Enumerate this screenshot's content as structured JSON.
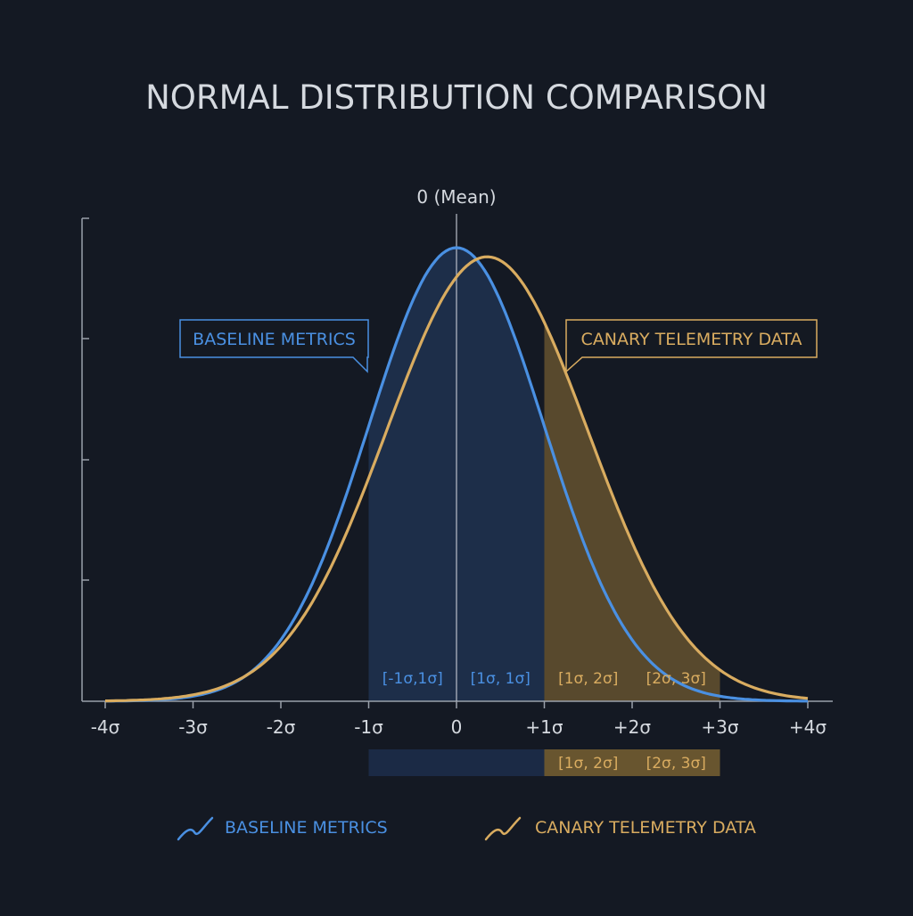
{
  "colors": {
    "background": "#141923",
    "axis": "#9aa1ab",
    "text": "#d5d9df",
    "baseline": "#4a90e2",
    "canary": "#d9ac60",
    "baseline_fill": "#1e3350",
    "canary_fill": "#7d6432",
    "baseline_fill_dark": "#1b2a45"
  },
  "title": "NORMAL DISTRIBUTION COMPARISON",
  "chart_data": {
    "type": "line",
    "title": "NORMAL DISTRIBUTION COMPARISON",
    "xlabel": "",
    "ylabel": "",
    "xlim": [
      -4,
      4
    ],
    "x_ticks": [
      -4,
      -3,
      -2,
      -1,
      0,
      1,
      2,
      3,
      4
    ],
    "x_tick_labels": [
      "-4σ",
      "-3σ",
      "-2σ",
      "-1σ",
      "0",
      "+1σ",
      "+2σ",
      "+3σ",
      "+4σ"
    ],
    "mean_label": "0 (Mean)",
    "grid": false,
    "series": [
      {
        "name": "BASELINE METRICS",
        "mean": 0,
        "sd": 1,
        "peak": 1.0,
        "color": "#4a90e2"
      },
      {
        "name": "CANARY TELEMETRY DATA",
        "mean": 0.35,
        "sd": 1.15,
        "peak": 0.98,
        "color": "#d9ac60"
      }
    ],
    "callouts": [
      {
        "text": "BASELINE METRICS",
        "series": "BASELINE METRICS"
      },
      {
        "text": "CANARY TELEMETRY DATA",
        "series": "CANARY TELEMETRY DATA"
      }
    ],
    "regions": [
      {
        "from": -1,
        "to": 0,
        "label": "[-1σ,1σ]",
        "color": "#4a90e2",
        "kind": "baseline"
      },
      {
        "from": 0,
        "to": 1,
        "label": "[1σ, 1σ]",
        "color": "#4a90e2",
        "kind": "baseline"
      },
      {
        "from": 1,
        "to": 2,
        "label": "[1σ, 2σ]",
        "color": "#d9ac60",
        "kind": "canary"
      },
      {
        "from": 2,
        "to": 3,
        "label": "[2σ, 3σ]",
        "color": "#d9ac60",
        "kind": "canary"
      }
    ],
    "range_bar": [
      {
        "from": -1,
        "to": 1,
        "label": "",
        "kind": "baseline"
      },
      {
        "from": 1,
        "to": 2,
        "label": "[1σ, 2σ]",
        "kind": "canary"
      },
      {
        "from": 2,
        "to": 3,
        "label": "[2σ, 3σ]",
        "kind": "canary"
      }
    ],
    "legend": {
      "placement": "bottom",
      "items": [
        {
          "label": "BASELINE METRICS",
          "color": "#4a90e2",
          "icon": "trend-line-icon"
        },
        {
          "label": "CANARY TELEMETRY DATA",
          "color": "#d9ac60",
          "icon": "trend-line-icon"
        }
      ]
    }
  }
}
